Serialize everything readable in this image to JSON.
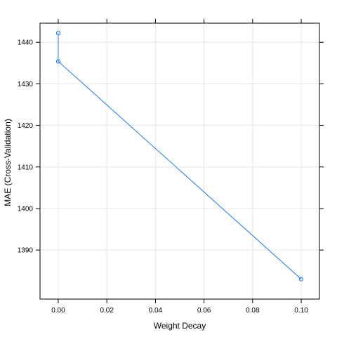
{
  "chart_data": {
    "type": "line",
    "title": "",
    "xlabel": "Weight Decay",
    "ylabel": "MAE (Cross-Validation)",
    "xlim": [
      -0.0075,
      0.1075
    ],
    "ylim": [
      1378.2,
      1444.6
    ],
    "xticks": [
      0.0,
      0.02,
      0.04,
      0.06,
      0.08,
      0.1
    ],
    "xtick_labels": [
      "0.00",
      "0.02",
      "0.04",
      "0.06",
      "0.08",
      "0.10"
    ],
    "yticks": [
      1390,
      1400,
      1410,
      1420,
      1430,
      1440
    ],
    "ytick_labels": [
      "1390",
      "1400",
      "1410",
      "1420",
      "1430",
      "1440"
    ],
    "grid": true,
    "series": [
      {
        "x": [
          0.0,
          0.0,
          0.1
        ],
        "y": [
          1442.2,
          1435.4,
          1383.0
        ],
        "marker": "open-circle",
        "color": "#1f78e6"
      }
    ],
    "colors": {
      "grid": "#e6e6e6",
      "frame": "#000000",
      "line": "#1f78e6"
    }
  }
}
